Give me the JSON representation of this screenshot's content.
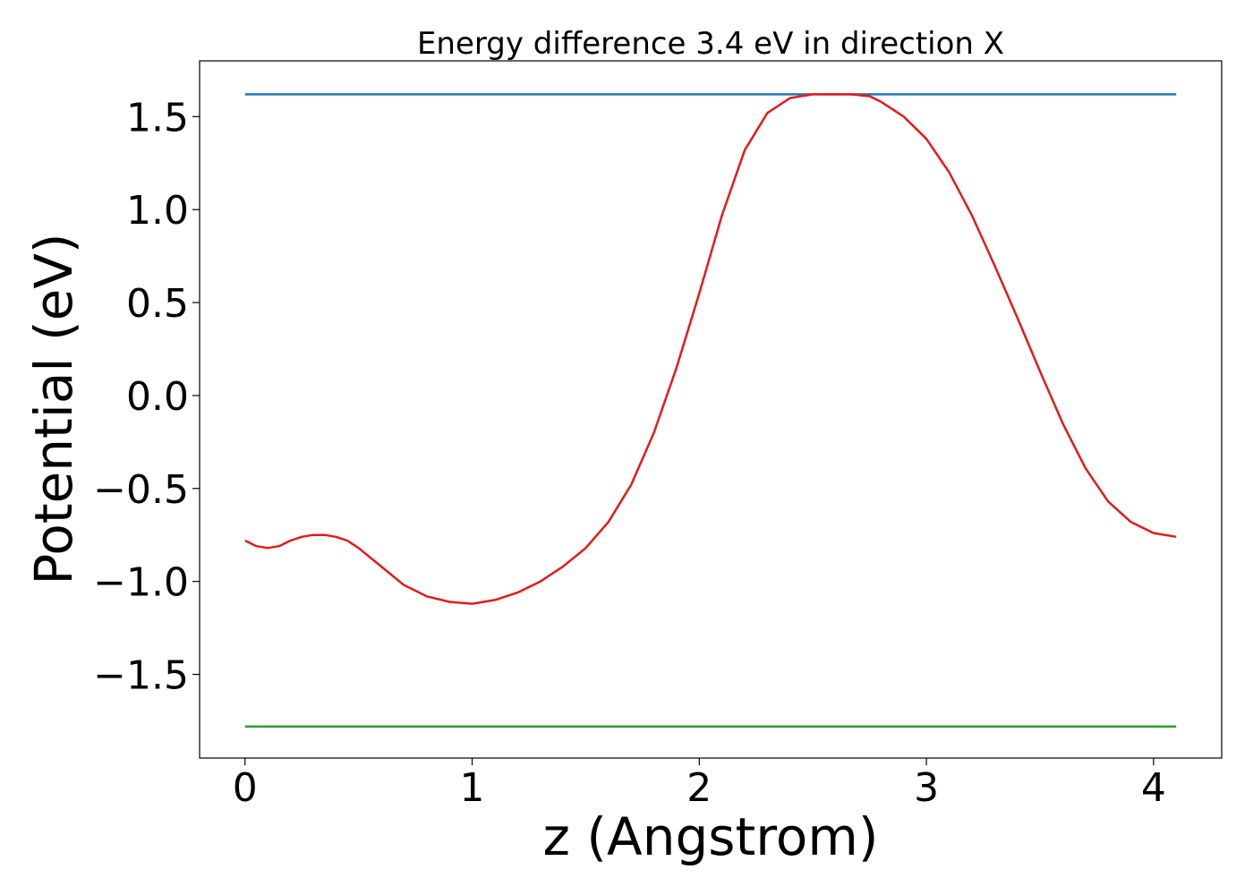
{
  "chart_data": {
    "type": "line",
    "title": "Energy difference 3.4 eV in direction X",
    "xlabel": "z (Angstrom)",
    "ylabel": "Potential (eV)",
    "xlim": [
      -0.2,
      4.3
    ],
    "ylim": [
      -1.95,
      1.8
    ],
    "xticks": [
      0,
      1,
      2,
      3,
      4
    ],
    "xtick_labels": [
      "0",
      "1",
      "2",
      "3",
      "4"
    ],
    "yticks": [
      -1.5,
      -1.0,
      -0.5,
      0.0,
      0.5,
      1.0,
      1.5
    ],
    "ytick_labels": [
      "−1.5",
      "−1.0",
      "−0.5",
      "0.0",
      "0.5",
      "1.0",
      "1.5"
    ],
    "grid": false,
    "series": [
      {
        "color": "#1f77b4",
        "x": [
          0,
          4.1
        ],
        "y": [
          1.62,
          1.62
        ]
      },
      {
        "color": "#2ca02c",
        "x": [
          0,
          4.1
        ],
        "y": [
          -1.78,
          -1.78
        ]
      },
      {
        "color": "#e31a1c",
        "x": [
          0.0,
          0.05,
          0.1,
          0.15,
          0.2,
          0.25,
          0.3,
          0.35,
          0.4,
          0.45,
          0.5,
          0.6,
          0.7,
          0.8,
          0.9,
          1.0,
          1.1,
          1.2,
          1.3,
          1.4,
          1.5,
          1.6,
          1.7,
          1.8,
          1.9,
          2.0,
          2.1,
          2.2,
          2.3,
          2.4,
          2.5,
          2.6,
          2.67,
          2.75,
          2.8,
          2.9,
          3.0,
          3.1,
          3.2,
          3.3,
          3.4,
          3.5,
          3.6,
          3.7,
          3.8,
          3.9,
          4.0,
          4.1
        ],
        "y": [
          -0.78,
          -0.81,
          -0.82,
          -0.81,
          -0.78,
          -0.76,
          -0.75,
          -0.75,
          -0.76,
          -0.78,
          -0.82,
          -0.92,
          -1.02,
          -1.08,
          -1.11,
          -1.12,
          -1.1,
          -1.06,
          -1.0,
          -0.92,
          -0.82,
          -0.68,
          -0.48,
          -0.2,
          0.15,
          0.55,
          0.97,
          1.32,
          1.52,
          1.6,
          1.62,
          1.62,
          1.62,
          1.61,
          1.58,
          1.5,
          1.38,
          1.2,
          0.97,
          0.7,
          0.42,
          0.13,
          -0.15,
          -0.39,
          -0.57,
          -0.68,
          -0.74,
          -0.76
        ]
      }
    ]
  }
}
